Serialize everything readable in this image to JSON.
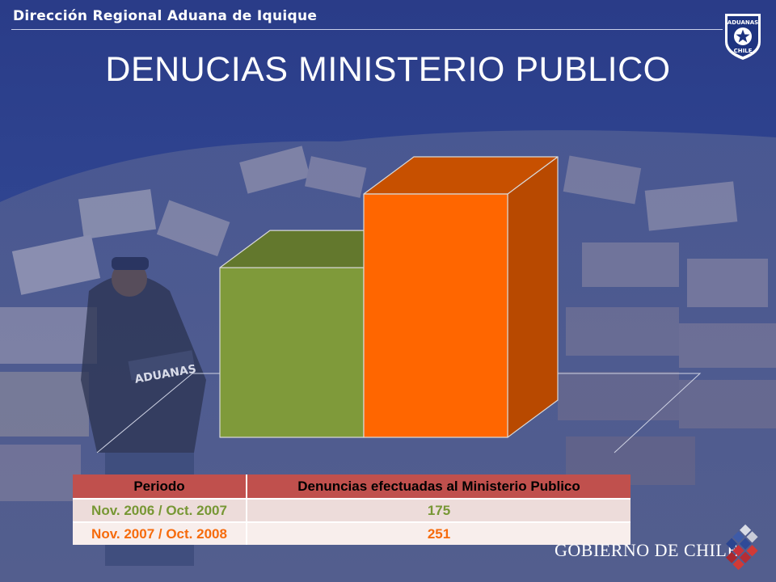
{
  "header": {
    "org": "Dirección Regional Aduana de Iquique"
  },
  "logo": {
    "line1": "ADUANAS",
    "line2": "CHILE"
  },
  "title": "DENUCIAS MINISTERIO PUBLICO",
  "chart_data": {
    "type": "bar",
    "style": "3d",
    "categories": [
      "Nov. 2006 / Oct. 2007",
      "Nov. 2007 / Oct. 2008"
    ],
    "values": [
      175,
      251
    ],
    "colors": [
      "#7f9a3a",
      "#ff6600"
    ],
    "ylim": [
      0,
      251
    ],
    "grid": false,
    "legend": "none"
  },
  "table": {
    "headers": [
      "Periodo",
      "Denuncias efectuadas al Ministerio Publico"
    ],
    "rows": [
      [
        "Nov. 2006 / Oct. 2007",
        "175"
      ],
      [
        "Nov. 2007 / Oct. 2008",
        "251"
      ]
    ]
  },
  "footer": {
    "gov_label": "GOBIERNO DE CHILE",
    "jacket_label": "ADUANAS"
  },
  "colors": {
    "background": "#2b3e86",
    "header_row": "#c0504d",
    "series1": "#7f9a3a",
    "series2": "#ff6600"
  }
}
